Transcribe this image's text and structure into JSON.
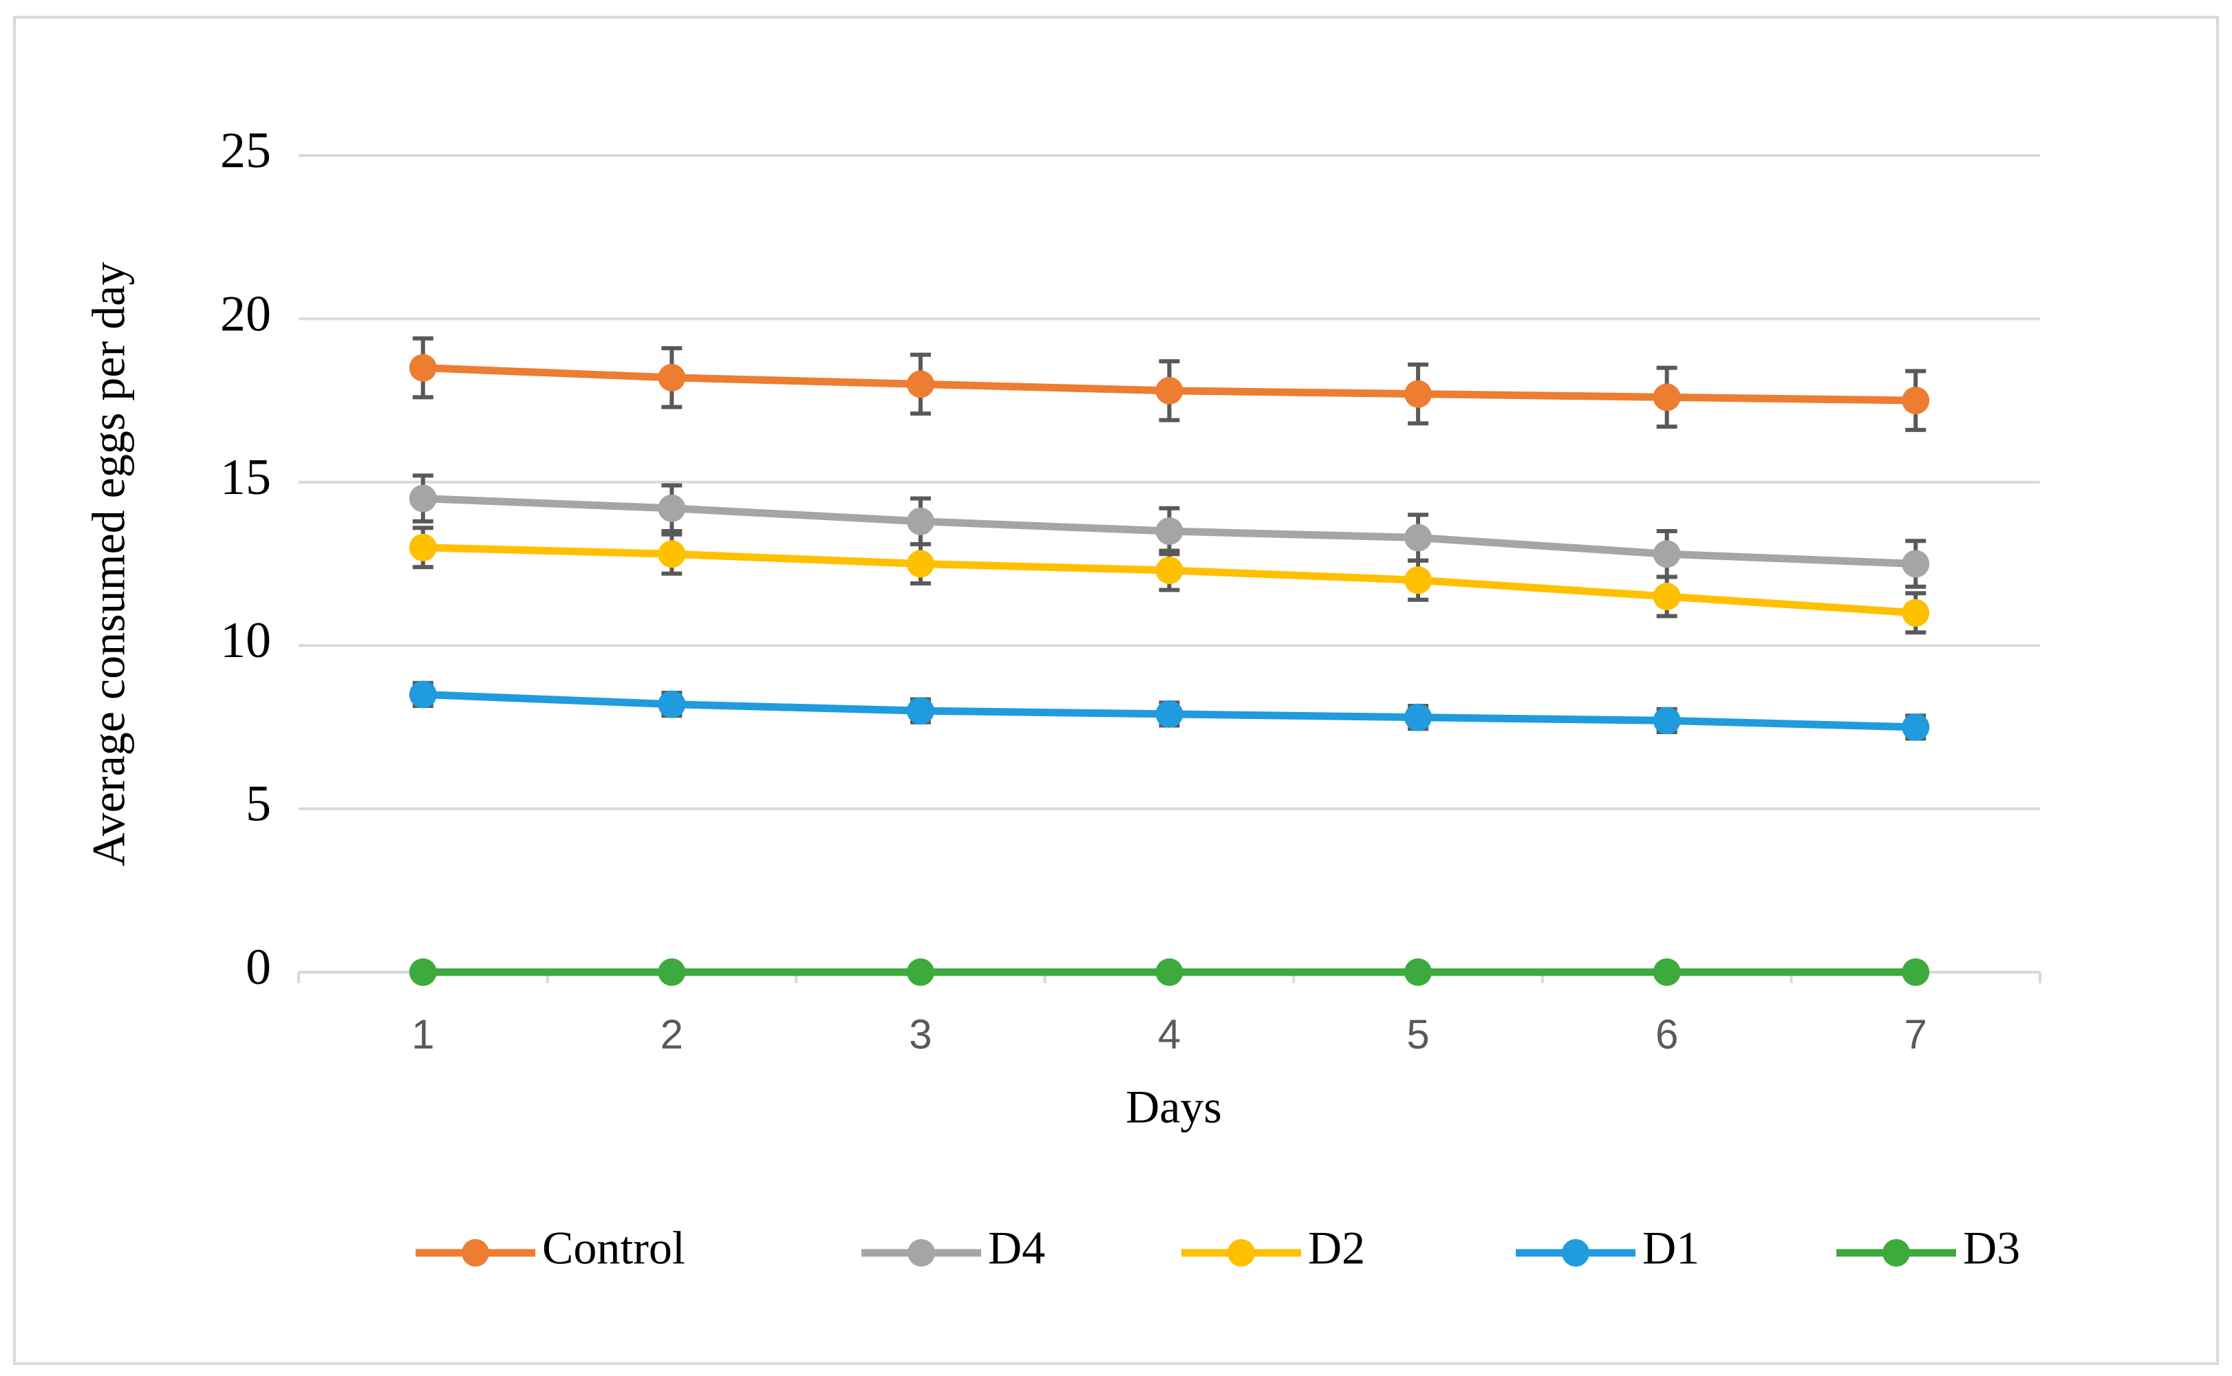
{
  "chart_data": {
    "type": "line",
    "xlabel": "Days",
    "ylabel": "Average consumed eggs per day",
    "categories": [
      1,
      2,
      3,
      4,
      5,
      6,
      7
    ],
    "series": [
      {
        "name": "Control",
        "color": "#ED7D31",
        "values": [
          18.5,
          18.2,
          18.0,
          17.8,
          17.7,
          17.6,
          17.5
        ],
        "errors": [
          0.9,
          0.9,
          0.9,
          0.9,
          0.9,
          0.9,
          0.9
        ]
      },
      {
        "name": "D4",
        "color": "#A5A5A5",
        "values": [
          14.5,
          14.2,
          13.8,
          13.5,
          13.3,
          12.8,
          12.5
        ],
        "errors": [
          0.7,
          0.7,
          0.7,
          0.7,
          0.7,
          0.7,
          0.7
        ]
      },
      {
        "name": "D2",
        "color": "#FFC000",
        "values": [
          13.0,
          12.8,
          12.5,
          12.3,
          12.0,
          11.5,
          11.0
        ],
        "errors": [
          0.6,
          0.6,
          0.6,
          0.6,
          0.6,
          0.6,
          0.6
        ]
      },
      {
        "name": "D1",
        "color": "#1F9BDE",
        "values": [
          8.5,
          8.2,
          8.0,
          7.9,
          7.8,
          7.7,
          7.5
        ],
        "errors": [
          0.35,
          0.35,
          0.35,
          0.35,
          0.35,
          0.35,
          0.35
        ]
      },
      {
        "name": "D3",
        "color": "#3CAA3C",
        "values": [
          0,
          0,
          0,
          0,
          0,
          0,
          0
        ]
      }
    ],
    "ylim": [
      0,
      25
    ],
    "yticks": [
      0,
      5,
      10,
      15,
      20,
      25
    ],
    "grid": true,
    "legend": "bottom"
  }
}
